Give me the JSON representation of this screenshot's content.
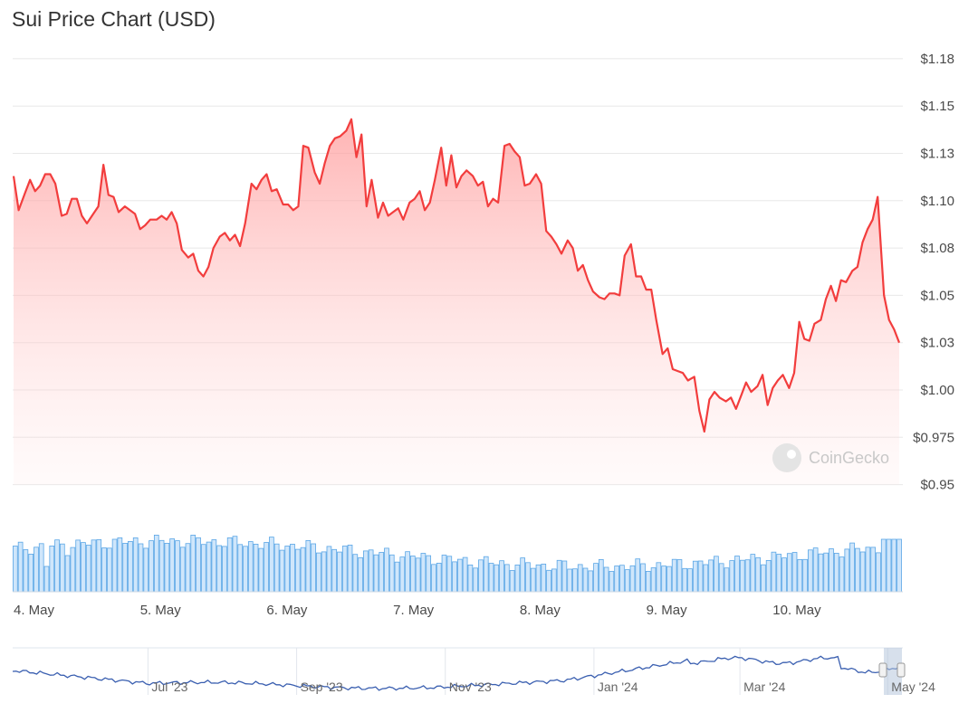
{
  "chart_title": "Sui Price Chart (USD)",
  "watermark": "CoinGecko",
  "chart_data": {
    "type": "line",
    "title": "Sui Price Chart (USD)",
    "xlabel": "",
    "ylabel": "",
    "y_ticks": [
      "$1.18",
      "$1.15",
      "$1.13",
      "$1.10",
      "$1.08",
      "$1.05",
      "$1.03",
      "$1.00",
      "$0.975",
      "$0.95"
    ],
    "y_tick_values": [
      1.175,
      1.15,
      1.125,
      1.1,
      1.075,
      1.05,
      1.025,
      1.0,
      0.975,
      0.95
    ],
    "ylim": [
      0.95,
      1.18
    ],
    "x_tick_labels": [
      "4. May",
      "5. May",
      "6. May",
      "7. May",
      "8. May",
      "9. May",
      "10. May"
    ],
    "x_tick_values": [
      0,
      1,
      2,
      3,
      4,
      5,
      6
    ],
    "xlim": [
      0,
      7.0
    ],
    "line_color": "#f23d3d",
    "fill_color": "#ff9a9a",
    "volume_color": "#4a9fe0",
    "price_points": [
      [
        0.0,
        1.113
      ],
      [
        0.04,
        1.095
      ],
      [
        0.09,
        1.104
      ],
      [
        0.13,
        1.111
      ],
      [
        0.17,
        1.105
      ],
      [
        0.21,
        1.108
      ],
      [
        0.25,
        1.114
      ],
      [
        0.29,
        1.114
      ],
      [
        0.33,
        1.109
      ],
      [
        0.38,
        1.092
      ],
      [
        0.42,
        1.093
      ],
      [
        0.46,
        1.101
      ],
      [
        0.5,
        1.101
      ],
      [
        0.54,
        1.092
      ],
      [
        0.58,
        1.088
      ],
      [
        0.63,
        1.093
      ],
      [
        0.67,
        1.097
      ],
      [
        0.71,
        1.119
      ],
      [
        0.75,
        1.103
      ],
      [
        0.79,
        1.102
      ],
      [
        0.83,
        1.094
      ],
      [
        0.88,
        1.097
      ],
      [
        0.92,
        1.095
      ],
      [
        0.96,
        1.093
      ],
      [
        1.0,
        1.085
      ],
      [
        1.04,
        1.087
      ],
      [
        1.08,
        1.09
      ],
      [
        1.13,
        1.09
      ],
      [
        1.17,
        1.092
      ],
      [
        1.21,
        1.09
      ],
      [
        1.25,
        1.094
      ],
      [
        1.29,
        1.088
      ],
      [
        1.33,
        1.074
      ],
      [
        1.38,
        1.07
      ],
      [
        1.42,
        1.072
      ],
      [
        1.46,
        1.063
      ],
      [
        1.5,
        1.06
      ],
      [
        1.54,
        1.065
      ],
      [
        1.58,
        1.075
      ],
      [
        1.63,
        1.081
      ],
      [
        1.67,
        1.083
      ],
      [
        1.71,
        1.079
      ],
      [
        1.75,
        1.082
      ],
      [
        1.79,
        1.076
      ],
      [
        1.83,
        1.088
      ],
      [
        1.88,
        1.109
      ],
      [
        1.92,
        1.106
      ],
      [
        1.96,
        1.111
      ],
      [
        2.0,
        1.114
      ],
      [
        2.04,
        1.105
      ],
      [
        2.08,
        1.106
      ],
      [
        2.13,
        1.098
      ],
      [
        2.17,
        1.098
      ],
      [
        2.21,
        1.095
      ],
      [
        2.25,
        1.097
      ],
      [
        2.29,
        1.129
      ],
      [
        2.33,
        1.128
      ],
      [
        2.38,
        1.115
      ],
      [
        2.42,
        1.109
      ],
      [
        2.46,
        1.12
      ],
      [
        2.5,
        1.129
      ],
      [
        2.54,
        1.133
      ],
      [
        2.58,
        1.134
      ],
      [
        2.63,
        1.137
      ],
      [
        2.67,
        1.143
      ],
      [
        2.71,
        1.123
      ],
      [
        2.75,
        1.135
      ],
      [
        2.79,
        1.097
      ],
      [
        2.83,
        1.111
      ],
      [
        2.88,
        1.091
      ],
      [
        2.92,
        1.099
      ],
      [
        2.96,
        1.092
      ],
      [
        3.0,
        1.094
      ],
      [
        3.04,
        1.096
      ],
      [
        3.08,
        1.09
      ],
      [
        3.13,
        1.099
      ],
      [
        3.17,
        1.101
      ],
      [
        3.21,
        1.105
      ],
      [
        3.25,
        1.095
      ],
      [
        3.29,
        1.099
      ],
      [
        3.33,
        1.111
      ],
      [
        3.38,
        1.128
      ],
      [
        3.42,
        1.108
      ],
      [
        3.46,
        1.124
      ],
      [
        3.5,
        1.107
      ],
      [
        3.54,
        1.113
      ],
      [
        3.58,
        1.116
      ],
      [
        3.63,
        1.113
      ],
      [
        3.67,
        1.108
      ],
      [
        3.71,
        1.11
      ],
      [
        3.75,
        1.097
      ],
      [
        3.79,
        1.101
      ],
      [
        3.83,
        1.099
      ],
      [
        3.88,
        1.129
      ],
      [
        3.92,
        1.13
      ],
      [
        3.96,
        1.126
      ],
      [
        4.0,
        1.123
      ],
      [
        4.04,
        1.108
      ],
      [
        4.08,
        1.109
      ],
      [
        4.13,
        1.114
      ],
      [
        4.17,
        1.109
      ],
      [
        4.21,
        1.084
      ],
      [
        4.25,
        1.081
      ],
      [
        4.29,
        1.077
      ],
      [
        4.33,
        1.072
      ],
      [
        4.38,
        1.079
      ],
      [
        4.42,
        1.075
      ],
      [
        4.46,
        1.063
      ],
      [
        4.5,
        1.066
      ],
      [
        4.54,
        1.058
      ],
      [
        4.58,
        1.052
      ],
      [
        4.63,
        1.049
      ],
      [
        4.67,
        1.048
      ],
      [
        4.71,
        1.051
      ],
      [
        4.75,
        1.051
      ],
      [
        4.79,
        1.05
      ],
      [
        4.83,
        1.071
      ],
      [
        4.88,
        1.077
      ],
      [
        4.92,
        1.06
      ],
      [
        4.96,
        1.06
      ],
      [
        5.0,
        1.053
      ],
      [
        5.04,
        1.053
      ],
      [
        5.08,
        1.037
      ],
      [
        5.13,
        1.019
      ],
      [
        5.17,
        1.022
      ],
      [
        5.21,
        1.011
      ],
      [
        5.25,
        1.01
      ],
      [
        5.29,
        1.009
      ],
      [
        5.33,
        1.005
      ],
      [
        5.38,
        1.007
      ],
      [
        5.42,
        0.989
      ],
      [
        5.46,
        0.978
      ],
      [
        5.5,
        0.995
      ],
      [
        5.54,
        0.999
      ],
      [
        5.58,
        0.996
      ],
      [
        5.63,
        0.994
      ],
      [
        5.67,
        0.996
      ],
      [
        5.71,
        0.99
      ],
      [
        5.75,
        0.997
      ],
      [
        5.79,
        1.004
      ],
      [
        5.83,
        0.999
      ],
      [
        5.88,
        1.002
      ],
      [
        5.92,
        1.008
      ],
      [
        5.96,
        0.992
      ],
      [
        6.0,
        1.001
      ],
      [
        6.04,
        1.005
      ],
      [
        6.08,
        1.008
      ],
      [
        6.13,
        1.001
      ],
      [
        6.17,
        1.009
      ],
      [
        6.21,
        1.036
      ],
      [
        6.25,
        1.027
      ],
      [
        6.29,
        1.026
      ],
      [
        6.33,
        1.035
      ],
      [
        6.38,
        1.037
      ],
      [
        6.42,
        1.048
      ],
      [
        6.46,
        1.055
      ],
      [
        6.5,
        1.047
      ],
      [
        6.54,
        1.058
      ],
      [
        6.58,
        1.057
      ],
      [
        6.63,
        1.063
      ],
      [
        6.67,
        1.065
      ],
      [
        6.71,
        1.078
      ],
      [
        6.75,
        1.085
      ],
      [
        6.79,
        1.09
      ],
      [
        6.83,
        1.102
      ],
      [
        6.88,
        1.05
      ],
      [
        6.92,
        1.037
      ],
      [
        6.96,
        1.032
      ],
      [
        7.0,
        1.025
      ]
    ]
  },
  "navigator": {
    "labels": [
      "Jul '23",
      "Sep '23",
      "Nov '23",
      "Jan '24",
      "Mar '24",
      "May '24"
    ],
    "label_positions": [
      0.152,
      0.319,
      0.486,
      0.653,
      0.817,
      0.983
    ],
    "line_color": "#3a5fb0"
  }
}
